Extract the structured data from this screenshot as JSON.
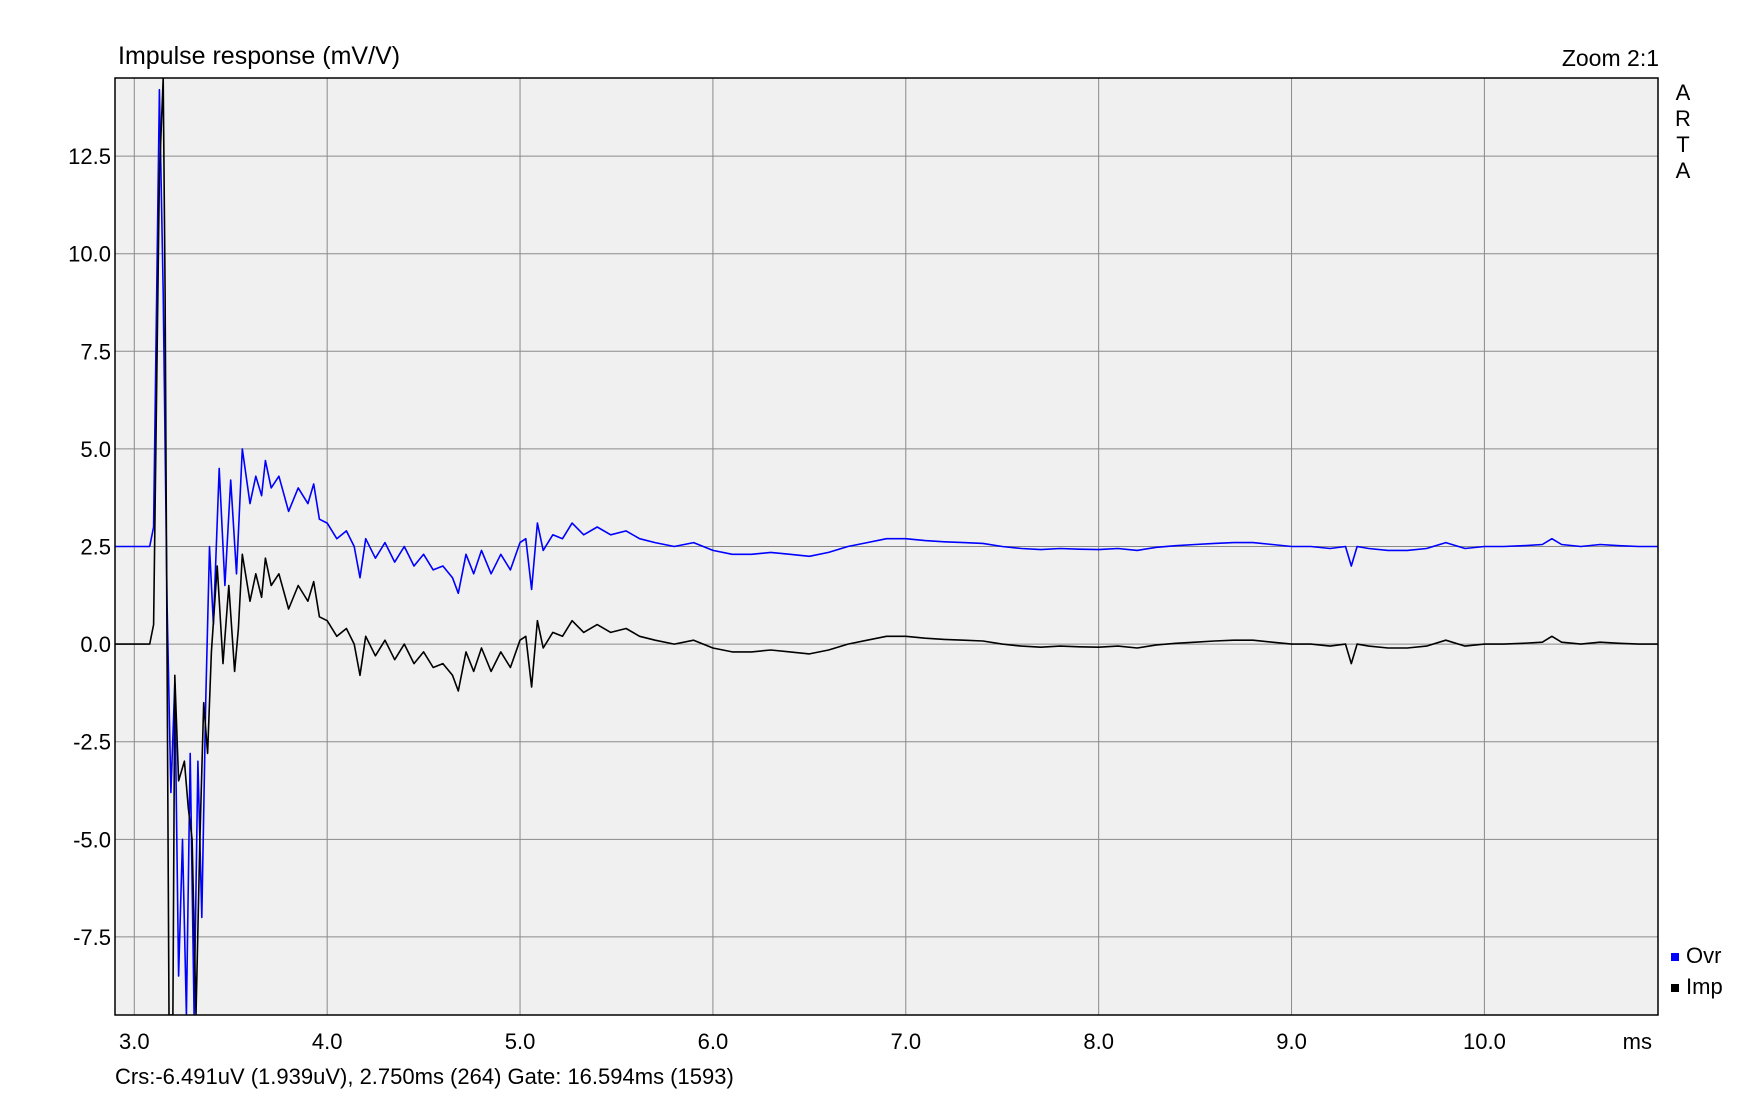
{
  "chart_data": {
    "type": "line",
    "title": "Impulse response (mV/V)",
    "zoom_label": "Zoom 2:1",
    "brand_letters": [
      "A",
      "R",
      "T",
      "A"
    ],
    "x_unit": "ms",
    "xlim": [
      2.9,
      10.9
    ],
    "ylim": [
      -9.5,
      14.5
    ],
    "x_ticks": [
      {
        "value": 3.0,
        "label": "3.0"
      },
      {
        "value": 4.0,
        "label": "4.0"
      },
      {
        "value": 5.0,
        "label": "5.0"
      },
      {
        "value": 6.0,
        "label": "6.0"
      },
      {
        "value": 7.0,
        "label": "7.0"
      },
      {
        "value": 8.0,
        "label": "8.0"
      },
      {
        "value": 9.0,
        "label": "9.0"
      },
      {
        "value": 10.0,
        "label": "10.0"
      }
    ],
    "y_ticks": [
      {
        "value": 12.5,
        "label": "12.5"
      },
      {
        "value": 10.0,
        "label": "10.0"
      },
      {
        "value": 7.5,
        "label": "7.5"
      },
      {
        "value": 5.0,
        "label": "5.0"
      },
      {
        "value": 2.5,
        "label": "2.5"
      },
      {
        "value": 0.0,
        "label": "0.0"
      },
      {
        "value": -2.5,
        "label": "-2.5"
      },
      {
        "value": -5.0,
        "label": "-5.0"
      },
      {
        "value": -7.5,
        "label": "-7.5"
      }
    ],
    "grid": true,
    "legend_placement": "bottom-right",
    "series": [
      {
        "name": "Ovr",
        "color": "#0000ff",
        "points": [
          [
            2.9,
            2.5
          ],
          [
            3.0,
            2.5
          ],
          [
            3.08,
            2.5
          ],
          [
            3.1,
            3.0
          ],
          [
            3.13,
            14.2
          ],
          [
            3.15,
            9.0
          ],
          [
            3.17,
            1.0
          ],
          [
            3.19,
            -3.8
          ],
          [
            3.21,
            -1.0
          ],
          [
            3.23,
            -8.5
          ],
          [
            3.25,
            -5.0
          ],
          [
            3.27,
            -9.5
          ],
          [
            3.29,
            -2.8
          ],
          [
            3.31,
            -9.5
          ],
          [
            3.33,
            -3.0
          ],
          [
            3.35,
            -7.0
          ],
          [
            3.37,
            -1.5
          ],
          [
            3.39,
            2.5
          ],
          [
            3.41,
            0.5
          ],
          [
            3.44,
            4.5
          ],
          [
            3.47,
            1.5
          ],
          [
            3.5,
            4.2
          ],
          [
            3.53,
            1.8
          ],
          [
            3.56,
            5.0
          ],
          [
            3.6,
            3.6
          ],
          [
            3.63,
            4.3
          ],
          [
            3.66,
            3.8
          ],
          [
            3.68,
            4.7
          ],
          [
            3.71,
            4.0
          ],
          [
            3.75,
            4.3
          ],
          [
            3.8,
            3.4
          ],
          [
            3.85,
            4.0
          ],
          [
            3.9,
            3.6
          ],
          [
            3.93,
            4.1
          ],
          [
            3.96,
            3.2
          ],
          [
            4.0,
            3.1
          ],
          [
            4.05,
            2.7
          ],
          [
            4.1,
            2.9
          ],
          [
            4.14,
            2.5
          ],
          [
            4.17,
            1.7
          ],
          [
            4.2,
            2.7
          ],
          [
            4.25,
            2.2
          ],
          [
            4.3,
            2.6
          ],
          [
            4.35,
            2.1
          ],
          [
            4.4,
            2.5
          ],
          [
            4.45,
            2.0
          ],
          [
            4.5,
            2.3
          ],
          [
            4.55,
            1.9
          ],
          [
            4.6,
            2.0
          ],
          [
            4.65,
            1.7
          ],
          [
            4.68,
            1.3
          ],
          [
            4.72,
            2.3
          ],
          [
            4.76,
            1.8
          ],
          [
            4.8,
            2.4
          ],
          [
            4.85,
            1.8
          ],
          [
            4.9,
            2.3
          ],
          [
            4.95,
            1.9
          ],
          [
            5.0,
            2.6
          ],
          [
            5.03,
            2.7
          ],
          [
            5.06,
            1.4
          ],
          [
            5.09,
            3.1
          ],
          [
            5.12,
            2.4
          ],
          [
            5.17,
            2.8
          ],
          [
            5.22,
            2.7
          ],
          [
            5.27,
            3.1
          ],
          [
            5.33,
            2.8
          ],
          [
            5.4,
            3.0
          ],
          [
            5.47,
            2.8
          ],
          [
            5.55,
            2.9
          ],
          [
            5.62,
            2.7
          ],
          [
            5.7,
            2.6
          ],
          [
            5.8,
            2.5
          ],
          [
            5.9,
            2.6
          ],
          [
            6.0,
            2.4
          ],
          [
            6.1,
            2.3
          ],
          [
            6.2,
            2.3
          ],
          [
            6.3,
            2.35
          ],
          [
            6.4,
            2.3
          ],
          [
            6.5,
            2.25
          ],
          [
            6.6,
            2.35
          ],
          [
            6.7,
            2.5
          ],
          [
            6.8,
            2.6
          ],
          [
            6.9,
            2.7
          ],
          [
            7.0,
            2.7
          ],
          [
            7.1,
            2.65
          ],
          [
            7.2,
            2.62
          ],
          [
            7.3,
            2.6
          ],
          [
            7.4,
            2.58
          ],
          [
            7.5,
            2.5
          ],
          [
            7.6,
            2.45
          ],
          [
            7.7,
            2.42
          ],
          [
            7.8,
            2.45
          ],
          [
            7.9,
            2.43
          ],
          [
            8.0,
            2.42
          ],
          [
            8.1,
            2.45
          ],
          [
            8.2,
            2.4
          ],
          [
            8.3,
            2.48
          ],
          [
            8.4,
            2.52
          ],
          [
            8.5,
            2.55
          ],
          [
            8.6,
            2.58
          ],
          [
            8.7,
            2.6
          ],
          [
            8.8,
            2.6
          ],
          [
            8.9,
            2.55
          ],
          [
            9.0,
            2.5
          ],
          [
            9.1,
            2.5
          ],
          [
            9.2,
            2.45
          ],
          [
            9.28,
            2.5
          ],
          [
            9.31,
            2.0
          ],
          [
            9.34,
            2.5
          ],
          [
            9.4,
            2.45
          ],
          [
            9.5,
            2.4
          ],
          [
            9.6,
            2.4
          ],
          [
            9.7,
            2.45
          ],
          [
            9.8,
            2.6
          ],
          [
            9.9,
            2.45
          ],
          [
            10.0,
            2.5
          ],
          [
            10.1,
            2.5
          ],
          [
            10.2,
            2.52
          ],
          [
            10.3,
            2.55
          ],
          [
            10.35,
            2.7
          ],
          [
            10.4,
            2.55
          ],
          [
            10.5,
            2.5
          ],
          [
            10.6,
            2.55
          ],
          [
            10.7,
            2.52
          ],
          [
            10.8,
            2.5
          ],
          [
            10.9,
            2.5
          ]
        ]
      },
      {
        "name": "Imp",
        "color": "#000000",
        "points": [
          [
            2.9,
            0.0
          ],
          [
            3.08,
            0.0
          ],
          [
            3.1,
            0.5
          ],
          [
            3.13,
            12.0
          ],
          [
            3.15,
            14.5
          ],
          [
            3.16,
            9.0
          ],
          [
            3.18,
            -9.5
          ],
          [
            3.2,
            -9.5
          ],
          [
            3.21,
            -0.8
          ],
          [
            3.23,
            -3.5
          ],
          [
            3.26,
            -3.0
          ],
          [
            3.28,
            -4.2
          ],
          [
            3.3,
            -5.0
          ],
          [
            3.32,
            -9.5
          ],
          [
            3.34,
            -5.0
          ],
          [
            3.36,
            -1.5
          ],
          [
            3.38,
            -2.8
          ],
          [
            3.4,
            -0.2
          ],
          [
            3.43,
            2.0
          ],
          [
            3.46,
            -0.5
          ],
          [
            3.49,
            1.5
          ],
          [
            3.52,
            -0.7
          ],
          [
            3.54,
            0.4
          ],
          [
            3.56,
            2.3
          ],
          [
            3.6,
            1.1
          ],
          [
            3.63,
            1.8
          ],
          [
            3.66,
            1.2
          ],
          [
            3.68,
            2.2
          ],
          [
            3.71,
            1.5
          ],
          [
            3.75,
            1.8
          ],
          [
            3.8,
            0.9
          ],
          [
            3.85,
            1.5
          ],
          [
            3.9,
            1.1
          ],
          [
            3.93,
            1.6
          ],
          [
            3.96,
            0.7
          ],
          [
            4.0,
            0.6
          ],
          [
            4.05,
            0.2
          ],
          [
            4.1,
            0.4
          ],
          [
            4.14,
            0.0
          ],
          [
            4.17,
            -0.8
          ],
          [
            4.2,
            0.2
          ],
          [
            4.25,
            -0.3
          ],
          [
            4.3,
            0.1
          ],
          [
            4.35,
            -0.4
          ],
          [
            4.4,
            0.0
          ],
          [
            4.45,
            -0.5
          ],
          [
            4.5,
            -0.2
          ],
          [
            4.55,
            -0.6
          ],
          [
            4.6,
            -0.5
          ],
          [
            4.65,
            -0.8
          ],
          [
            4.68,
            -1.2
          ],
          [
            4.72,
            -0.2
          ],
          [
            4.76,
            -0.7
          ],
          [
            4.8,
            -0.1
          ],
          [
            4.85,
            -0.7
          ],
          [
            4.9,
            -0.2
          ],
          [
            4.95,
            -0.6
          ],
          [
            5.0,
            0.1
          ],
          [
            5.03,
            0.2
          ],
          [
            5.06,
            -1.1
          ],
          [
            5.09,
            0.6
          ],
          [
            5.12,
            -0.1
          ],
          [
            5.17,
            0.3
          ],
          [
            5.22,
            0.2
          ],
          [
            5.27,
            0.6
          ],
          [
            5.33,
            0.3
          ],
          [
            5.4,
            0.5
          ],
          [
            5.47,
            0.3
          ],
          [
            5.55,
            0.4
          ],
          [
            5.62,
            0.2
          ],
          [
            5.7,
            0.1
          ],
          [
            5.8,
            0.0
          ],
          [
            5.9,
            0.1
          ],
          [
            6.0,
            -0.1
          ],
          [
            6.1,
            -0.2
          ],
          [
            6.2,
            -0.2
          ],
          [
            6.3,
            -0.15
          ],
          [
            6.4,
            -0.2
          ],
          [
            6.5,
            -0.25
          ],
          [
            6.6,
            -0.15
          ],
          [
            6.7,
            0.0
          ],
          [
            6.8,
            0.1
          ],
          [
            6.9,
            0.2
          ],
          [
            7.0,
            0.2
          ],
          [
            7.1,
            0.15
          ],
          [
            7.2,
            0.12
          ],
          [
            7.3,
            0.1
          ],
          [
            7.4,
            0.08
          ],
          [
            7.5,
            0.0
          ],
          [
            7.6,
            -0.05
          ],
          [
            7.7,
            -0.08
          ],
          [
            7.8,
            -0.05
          ],
          [
            7.9,
            -0.07
          ],
          [
            8.0,
            -0.08
          ],
          [
            8.1,
            -0.05
          ],
          [
            8.2,
            -0.1
          ],
          [
            8.3,
            -0.02
          ],
          [
            8.4,
            0.02
          ],
          [
            8.5,
            0.05
          ],
          [
            8.6,
            0.08
          ],
          [
            8.7,
            0.1
          ],
          [
            8.8,
            0.1
          ],
          [
            8.9,
            0.05
          ],
          [
            9.0,
            0.0
          ],
          [
            9.1,
            0.0
          ],
          [
            9.2,
            -0.05
          ],
          [
            9.28,
            0.0
          ],
          [
            9.31,
            -0.5
          ],
          [
            9.34,
            0.0
          ],
          [
            9.4,
            -0.05
          ],
          [
            9.5,
            -0.1
          ],
          [
            9.6,
            -0.1
          ],
          [
            9.7,
            -0.05
          ],
          [
            9.8,
            0.1
          ],
          [
            9.9,
            -0.05
          ],
          [
            10.0,
            0.0
          ],
          [
            10.1,
            0.0
          ],
          [
            10.2,
            0.02
          ],
          [
            10.3,
            0.05
          ],
          [
            10.35,
            0.2
          ],
          [
            10.4,
            0.05
          ],
          [
            10.5,
            0.0
          ],
          [
            10.6,
            0.05
          ],
          [
            10.7,
            0.02
          ],
          [
            10.8,
            0.0
          ],
          [
            10.9,
            0.0
          ]
        ]
      }
    ],
    "legend": [
      {
        "label": "Ovr",
        "color": "#0000ff"
      },
      {
        "label": "Imp",
        "color": "#000000"
      }
    ],
    "status_line": "Crs:-6.491uV (1.939uV), 2.750ms (264)  Gate: 16.594ms (1593)"
  }
}
